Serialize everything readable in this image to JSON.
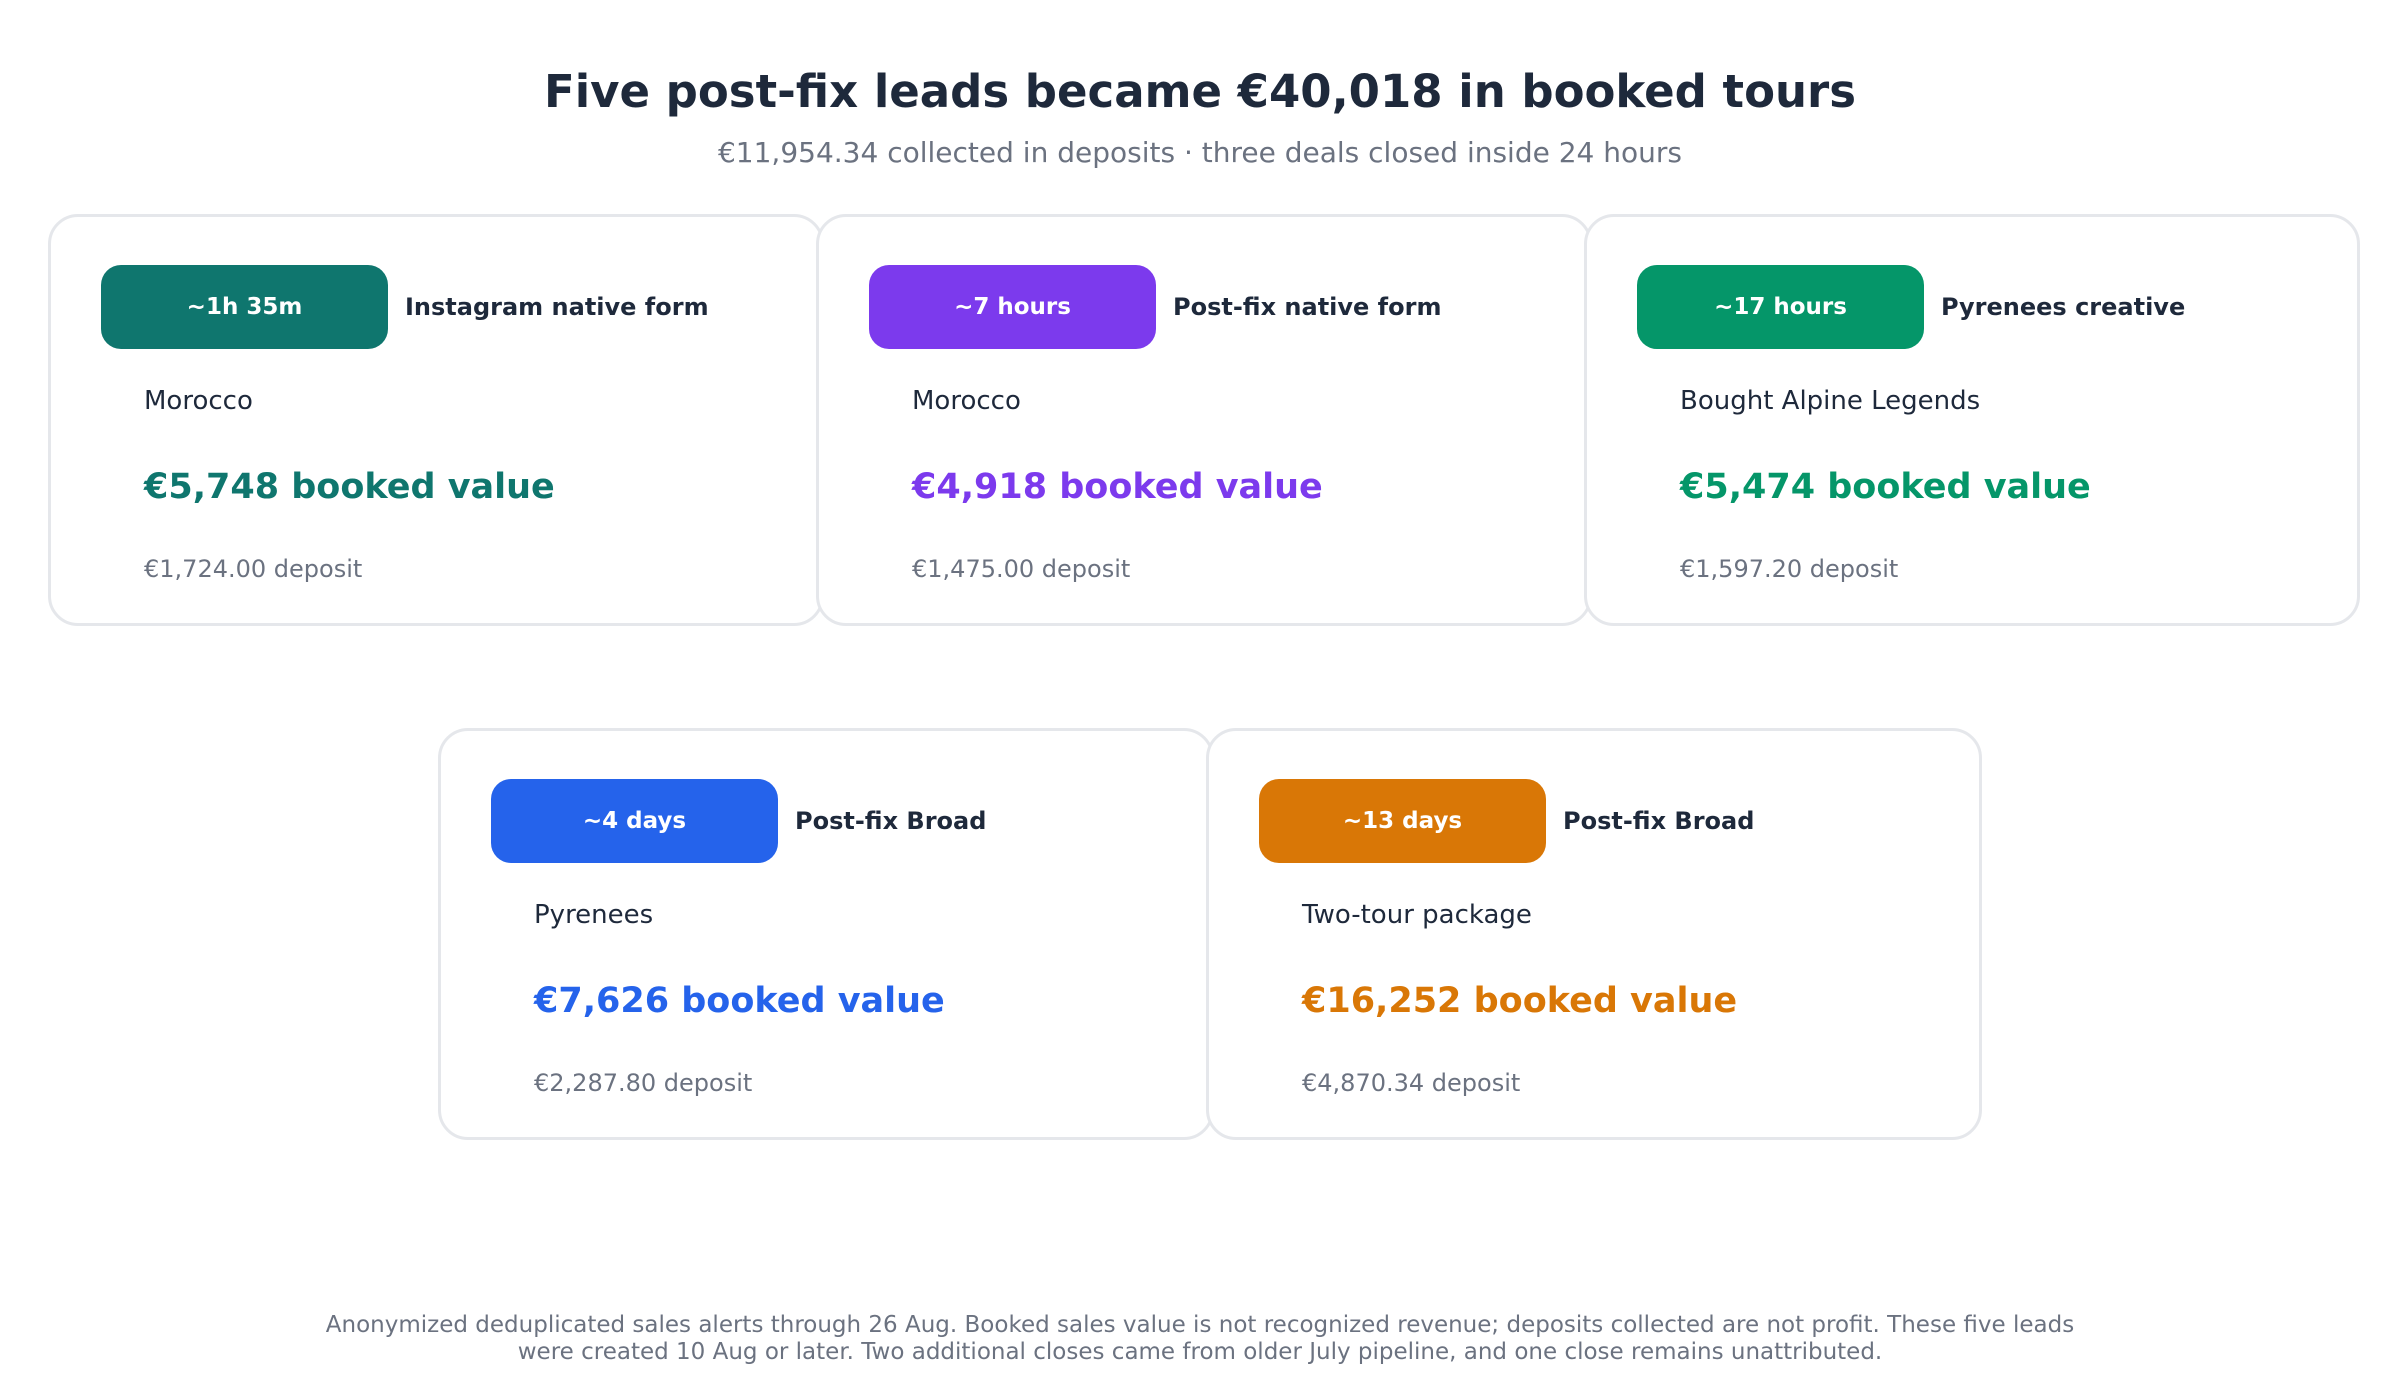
{
  "header": {
    "title": "Five post-fix leads became €40,018 in booked tours",
    "subtitle": "€11,954.34 collected in deposits · three deals closed inside 24 hours"
  },
  "cards": [
    {
      "time_to_close": "~1h 35m",
      "source": "Instagram native form",
      "product": "Morocco",
      "booked_value": "€5,748 booked value",
      "deposit": "€1,724.00 deposit",
      "color": "#0f766e"
    },
    {
      "time_to_close": "~7 hours",
      "source": "Post-fix native form",
      "product": "Morocco",
      "booked_value": "€4,918 booked value",
      "deposit": "€1,475.00 deposit",
      "color": "#7c3aed"
    },
    {
      "time_to_close": "~17 hours",
      "source": "Pyrenees creative",
      "product": "Bought Alpine Legends",
      "booked_value": "€5,474 booked value",
      "deposit": "€1,597.20 deposit",
      "color": "#059669"
    },
    {
      "time_to_close": "~4 days",
      "source": "Post-fix Broad",
      "product": "Pyrenees",
      "booked_value": "€7,626 booked value",
      "deposit": "€2,287.80 deposit",
      "color": "#2563eb"
    },
    {
      "time_to_close": "~13 days",
      "source": "Post-fix Broad",
      "product": "Two-tour package",
      "booked_value": "€16,252 booked value",
      "deposit": "€4,870.34 deposit",
      "color": "#d97706"
    }
  ],
  "footnote": "Anonymized deduplicated sales alerts through 26 Aug. Booked sales value is not recognized revenue; deposits collected are not profit. These five leads were created 10 Aug or later. Two additional closes came from older July pipeline, and one close remains unattributed."
}
